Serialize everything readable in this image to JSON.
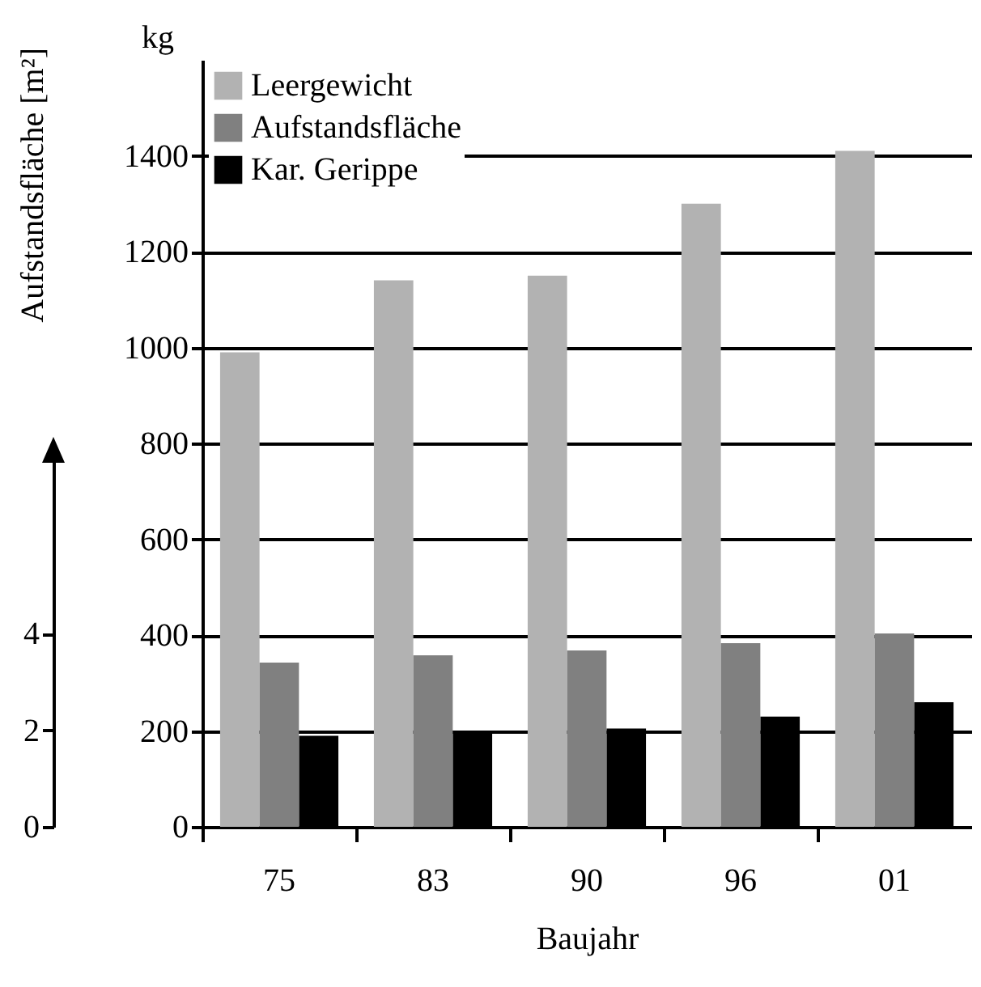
{
  "chart_data": {
    "type": "bar",
    "xlabel": "Baujahr",
    "ylabel": "kg",
    "y2label": "Aufstandsfläche [m²]",
    "categories": [
      "75",
      "83",
      "90",
      "96",
      "01"
    ],
    "series": [
      {
        "name": "Leergewicht",
        "color": "#b2b2b2",
        "values": [
          990,
          1140,
          1150,
          1300,
          1410
        ]
      },
      {
        "name": "Aufstandsfläche",
        "color": "#808080",
        "axis": "y2",
        "values": [
          3.4,
          3.55,
          3.65,
          3.8,
          4.0
        ]
      },
      {
        "name": "Kar. Gerippe",
        "color": "#000000",
        "values": [
          190,
          200,
          205,
          230,
          260
        ]
      }
    ],
    "ylim": [
      0,
      1600
    ],
    "yticks": [
      0,
      200,
      400,
      600,
      800,
      1000,
      1200,
      1400
    ],
    "y2lim": [
      0,
      7.7
    ],
    "y2ticks": [
      0,
      2,
      4
    ],
    "grid": "y",
    "legend": "top left"
  }
}
